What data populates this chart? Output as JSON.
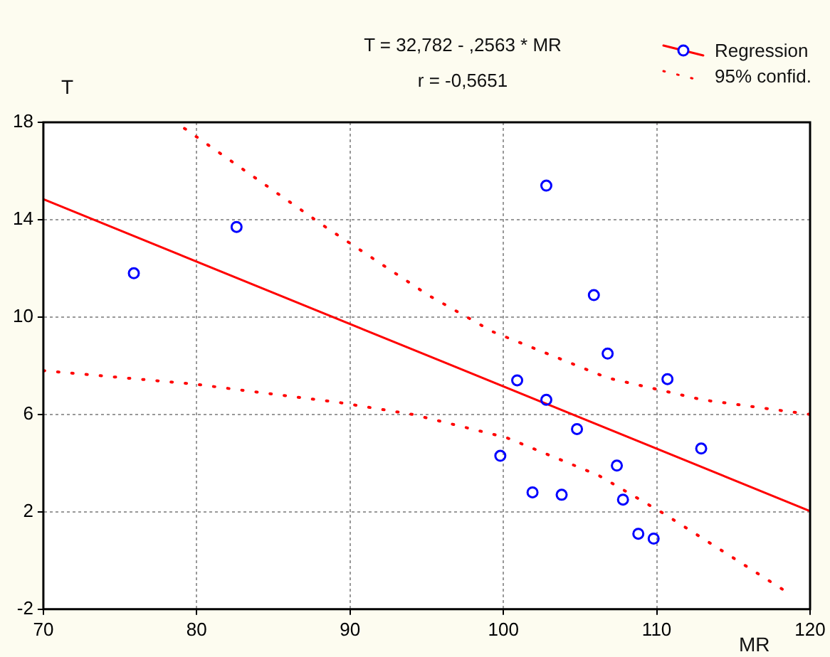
{
  "chart_data": {
    "type": "scatter",
    "title": "T = 32,782 - ,2563 * MR",
    "subtitle": "r = -0,5651",
    "xlabel": "MR",
    "ylabel": "T",
    "xlim": [
      70,
      120
    ],
    "xticks": [
      70,
      80,
      90,
      100,
      110,
      120
    ],
    "ylim": [
      -2,
      18
    ],
    "yticks": [
      -2,
      2,
      6,
      10,
      14,
      18
    ],
    "grid": true,
    "legend": "top right",
    "series": [
      {
        "marker": "circle",
        "color": "#0000ff",
        "x": [
          75.9,
          82.6,
          102.8,
          105.9,
          106.8,
          100.9,
          110.7,
          102.8,
          104.8,
          99.8,
          107.4,
          112.9,
          101.9,
          103.8,
          107.8,
          108.8,
          109.8
        ],
        "values": [
          11.8,
          13.7,
          15.4,
          10.9,
          8.5,
          7.4,
          7.45,
          6.6,
          5.4,
          4.3,
          3.9,
          4.6,
          2.8,
          2.7,
          2.5,
          1.1,
          0.9
        ]
      },
      {
        "name": "Regression",
        "type": "line",
        "marker": "none",
        "line_style": "solid",
        "color": "#ff0000",
        "x": [
          70,
          120
        ],
        "values": [
          14.84,
          2.03
        ]
      },
      {
        "name": "95% confid.",
        "type": "line",
        "marker": "none",
        "line_style": "dotted",
        "color": "#ff0000",
        "x": [
          79.2,
          88.4,
          95.1,
          99.3,
          106.8,
          113,
          120
        ],
        "values": [
          17.75,
          13.7,
          10.9,
          9.4,
          7.5,
          6.6,
          6.0
        ]
      },
      {
        "type": "line",
        "marker": "none",
        "line_style": "dotted",
        "color": "#ff0000",
        "x": [
          70,
          79.8,
          89.2,
          94.1,
          100.2,
          106.2,
          110.4,
          118.5
        ],
        "values": [
          7.8,
          7.25,
          6.5,
          6.0,
          5.05,
          3.5,
          1.95,
          -1.3
        ]
      }
    ]
  }
}
